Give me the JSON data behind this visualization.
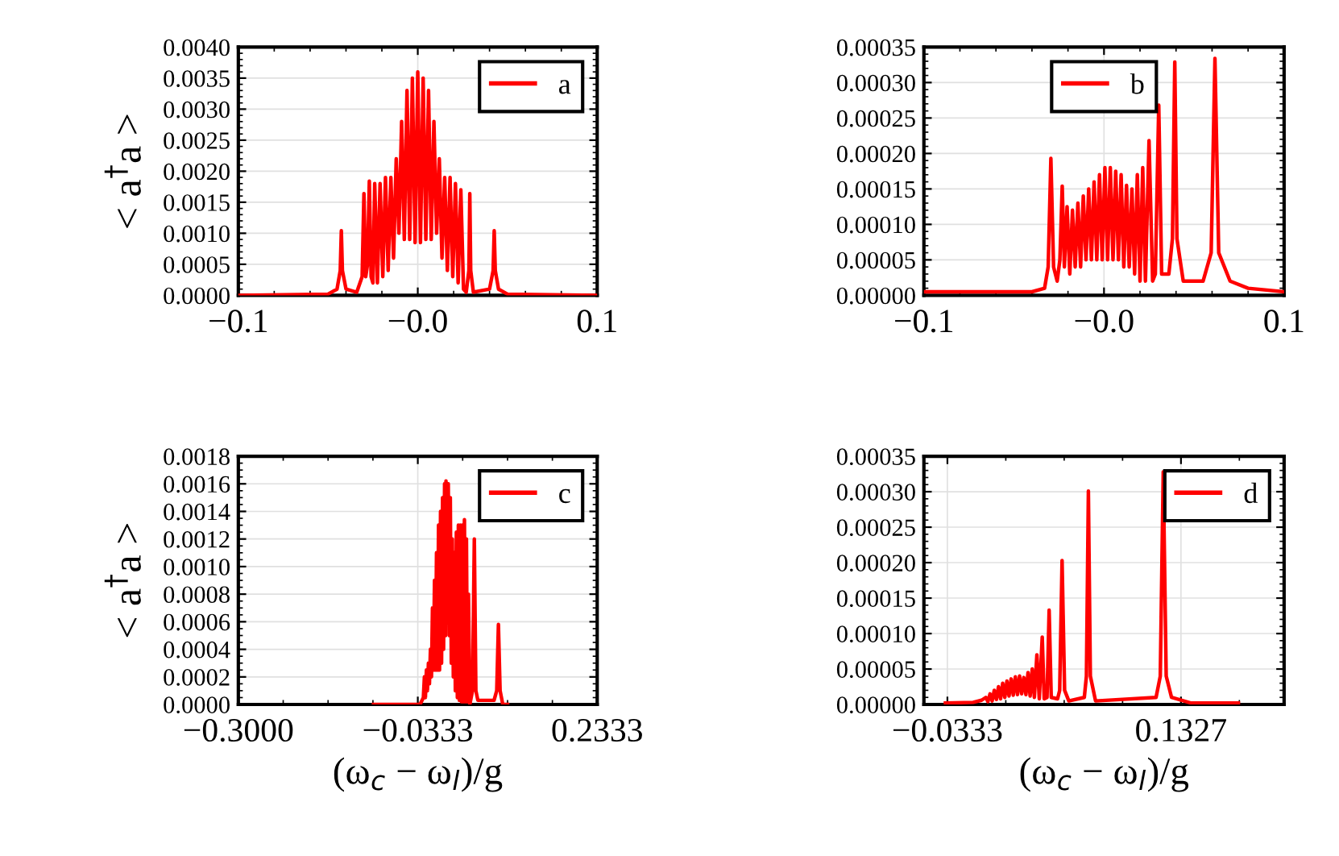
{
  "chart_data": [
    {
      "type": "line",
      "ylabel": "< a$^{†}$a >",
      "legend": "top right",
      "grid": true,
      "xlim": [
        -0.1,
        0.1
      ],
      "xticks": [
        {
          "value": -0.1,
          "label": "−0.1"
        },
        {
          "value": 0,
          "label": "−0.0"
        },
        0.1
      ],
      "ylim": [
        0,
        0.004
      ],
      "yticks": [
        {
          "value": 0,
          "label": "0.0000"
        },
        {
          "value": 0.0005,
          "label": "0.0005"
        },
        {
          "value": 0.001,
          "label": "0.0010"
        },
        {
          "value": 0.0015,
          "label": "0.0015"
        },
        {
          "value": 0.002,
          "label": "0.0020"
        },
        {
          "value": 0.0025,
          "label": "0.0025"
        },
        {
          "value": 0.003,
          "label": "0.0030"
        },
        {
          "value": 0.0035,
          "label": "0.0035"
        },
        {
          "value": 0.004,
          "label": "0.0040"
        }
      ],
      "series": [
        {
          "name": "a",
          "color": "#ff0000",
          "x": [
            -0.1,
            -0.05,
            -0.045,
            -0.0432,
            -0.0426,
            -0.042,
            -0.04,
            -0.034,
            -0.031,
            -0.03,
            -0.029,
            -0.028,
            -0.027,
            -0.026,
            -0.025,
            -0.024,
            -0.0225,
            -0.021,
            -0.0195,
            -0.018,
            -0.0165,
            -0.015,
            -0.0135,
            -0.012,
            -0.0105,
            -0.009,
            -0.0075,
            -0.006,
            -0.0045,
            -0.003,
            -0.0015,
            0,
            0.0015,
            0.003,
            0.0045,
            0.006,
            0.0075,
            0.009,
            0.0105,
            0.012,
            0.0135,
            0.015,
            0.0165,
            0.018,
            0.0195,
            0.021,
            0.0225,
            0.024,
            0.0255,
            0.027,
            0.0285,
            0.029,
            0.0295,
            0.031,
            0.04,
            0.042,
            0.0426,
            0.0432,
            0.045,
            0.05,
            0.1
          ],
          "values": [
            0,
            2e-05,
            0.0001,
            0.0004,
            0.00104,
            0.0004,
            0.0001,
            5e-05,
            0.0003,
            0.00164,
            0.0003,
            0.0005,
            0.00184,
            0.0003,
            0.0002,
            0.0018,
            0.0002,
            0.0018,
            0.0003,
            0.0019,
            0.0004,
            0.0019,
            0.0006,
            0.0022,
            0.001,
            0.0028,
            0.0009,
            0.0033,
            0.0009,
            0.0035,
            0.00085,
            0.0036,
            0.00085,
            0.0035,
            0.0009,
            0.0033,
            0.0009,
            0.0028,
            0.001,
            0.0022,
            0.0006,
            0.0019,
            0.0004,
            0.0019,
            0.0003,
            0.0018,
            0.0002,
            0.0017,
            0.0001,
            5e-05,
            0.0004,
            0.00164,
            0.0004,
            5e-05,
            0.0001,
            0.0004,
            0.00104,
            0.0004,
            0.0001,
            2e-05,
            0
          ]
        }
      ]
    },
    {
      "type": "line",
      "legend": "top",
      "grid": true,
      "xlim": [
        -0.1,
        0.1
      ],
      "xticks": [
        {
          "value": -0.1,
          "label": "−0.1"
        },
        {
          "value": 0,
          "label": "−0.0"
        },
        0.1
      ],
      "ylim": [
        0,
        0.00035
      ],
      "yticks": [
        {
          "value": 0,
          "label": "0.00000"
        },
        {
          "value": 5e-05,
          "label": "0.00005"
        },
        {
          "value": 0.0001,
          "label": "0.00010"
        },
        {
          "value": 0.00015,
          "label": "0.00015"
        },
        {
          "value": 0.0002,
          "label": "0.00020"
        },
        {
          "value": 0.00025,
          "label": "0.00025"
        },
        {
          "value": 0.0003,
          "label": "0.00030"
        },
        {
          "value": 0.00035,
          "label": "0.00035"
        }
      ],
      "series": [
        {
          "name": "b",
          "color": "#ff0000",
          "x": [
            -0.1,
            -0.04,
            -0.033,
            -0.031,
            -0.0295,
            -0.028,
            -0.026,
            -0.0245,
            -0.0232,
            -0.022,
            -0.0205,
            -0.019,
            -0.0175,
            -0.016,
            -0.0145,
            -0.013,
            -0.0115,
            -0.01,
            -0.0085,
            -0.007,
            -0.0055,
            -0.004,
            -0.0025,
            -0.001,
            0.0005,
            0.002,
            0.0035,
            0.005,
            0.0065,
            0.008,
            0.0095,
            0.011,
            0.0125,
            0.014,
            0.0155,
            0.017,
            0.0185,
            0.02,
            0.0215,
            0.023,
            0.025,
            0.027,
            0.0285,
            0.0304,
            0.032,
            0.036,
            0.038,
            0.0393,
            0.0405,
            0.044,
            0.055,
            0.0595,
            0.0616,
            0.0637,
            0.07,
            0.08,
            0.1
          ],
          "values": [
            5e-06,
            5e-06,
            1e-05,
            4e-05,
            0.000193,
            4e-05,
            2e-05,
            5e-05,
            0.000154,
            4e-05,
            0.000125,
            3e-05,
            0.00012,
            4e-05,
            0.00013,
            4e-05,
            0.00014,
            5e-05,
            0.00015,
            5e-05,
            0.00016,
            5e-05,
            0.00017,
            5e-05,
            0.00018,
            5e-05,
            0.00018,
            5e-05,
            0.000175,
            5e-05,
            0.00017,
            4e-05,
            0.000155,
            4e-05,
            0.00015,
            3e-05,
            0.00017,
            2e-05,
            0.00018,
            2e-05,
            0.000218,
            2e-05,
            3e-05,
            0.000268,
            3e-05,
            3e-05,
            8e-05,
            0.000329,
            8e-05,
            2e-05,
            2e-05,
            6e-05,
            0.000334,
            6e-05,
            2e-05,
            1e-05,
            5e-06
          ]
        }
      ]
    },
    {
      "type": "line",
      "ylabel": "< a$^{†}$a >",
      "xlabel": "(ω$_{c}$ − ω$_{l}$)/g",
      "legend": "top right",
      "grid": true,
      "xlim": [
        -0.3,
        0.2333
      ],
      "xticks": [
        {
          "value": -0.3,
          "label": "−0.3000"
        },
        {
          "value": -0.0333,
          "label": "−0.0333"
        },
        {
          "value": 0.2333,
          "label": "0.2333"
        }
      ],
      "ylim": [
        0,
        0.0018
      ],
      "yticks": [
        {
          "value": 0,
          "label": "0.0000"
        },
        {
          "value": 0.0002,
          "label": "0.0002"
        },
        {
          "value": 0.0004,
          "label": "0.0004"
        },
        {
          "value": 0.0006,
          "label": "0.0006"
        },
        {
          "value": 0.0008,
          "label": "0.0008"
        },
        {
          "value": 0.001,
          "label": "0.0010"
        },
        {
          "value": 0.0012,
          "label": "0.0012"
        },
        {
          "value": 0.0014,
          "label": "0.0014"
        },
        {
          "value": 0.0016,
          "label": "0.0016"
        },
        {
          "value": 0.0018,
          "label": "0.0018"
        }
      ],
      "series": [
        {
          "name": "c",
          "color": "#ff0000",
          "x": [
            -0.0991,
            -0.03,
            -0.025,
            -0.0235,
            -0.022,
            -0.0205,
            -0.019,
            -0.0175,
            -0.016,
            -0.0145,
            -0.013,
            -0.0115,
            -0.01,
            -0.0085,
            -0.007,
            -0.0055,
            -0.004,
            -0.0025,
            -0.001,
            0.0005,
            0.002,
            0.0035,
            0.005,
            0.0065,
            0.008,
            0.0086,
            0.0105,
            0.012,
            0.0135,
            0.015,
            0.0165,
            0.018,
            0.0195,
            0.021,
            0.0225,
            0.024,
            0.0255,
            0.027,
            0.0285,
            0.03,
            0.0315,
            0.033,
            0.0345,
            0.036,
            0.0375,
            0.039,
            0.0405,
            0.042,
            0.044,
            0.048,
            0.0507,
            0.053,
            0.056,
            0.08,
            0.084,
            0.0865,
            0.089,
            0.093,
            0.1002
          ],
          "values": [
            0,
            0,
            5e-05,
            0.0002,
            5e-05,
            0.00025,
            0.0001,
            0.0003,
            0.00015,
            0.0004,
            0.0002,
            0.0007,
            0.00025,
            0.0009,
            0.00025,
            0.0011,
            0.00025,
            0.0013,
            0.00025,
            0.0014,
            0.0003,
            0.0015,
            0.0004,
            0.0016,
            0.0005,
            0.00162,
            0.0006,
            0.0016,
            0.0005,
            0.0015,
            0.0003,
            0.0012,
            0.0002,
            0.0011,
            0.0001,
            0.00125,
            5e-05,
            0.0013,
            3e-05,
            0.0013,
            2e-05,
            0.0013,
            2e-05,
            0.00134,
            2e-05,
            0.0012,
            2e-05,
            0.0008,
            0,
            0.0001,
            0.0012,
            0.0001,
            3e-05,
            3e-05,
            0.0001,
            0.00058,
            0.0001,
            0,
            0
          ]
        }
      ]
    },
    {
      "type": "line",
      "xlabel": "(ω$_{c}$ − ω$_{l}$)/g",
      "legend": "top right",
      "grid": true,
      "xlim": [
        -0.05,
        0.206
      ],
      "xticks": [
        {
          "value": -0.0333,
          "label": "−0.0333"
        },
        {
          "value": 0.1327,
          "label": "0.1327"
        }
      ],
      "ylim": [
        0,
        0.00035
      ],
      "yticks": [
        {
          "value": 0,
          "label": "0.00000"
        },
        {
          "value": 5e-05,
          "label": "0.00005"
        },
        {
          "value": 0.0001,
          "label": "0.00010"
        },
        {
          "value": 0.00015,
          "label": "0.00015"
        },
        {
          "value": 0.0002,
          "label": "0.00020"
        },
        {
          "value": 0.00025,
          "label": "0.00025"
        },
        {
          "value": 0.0003,
          "label": "0.00030"
        },
        {
          "value": 0.00035,
          "label": "0.00035"
        }
      ],
      "series": [
        {
          "name": "d",
          "color": "#ff0000",
          "x": [
            -0.0347,
            -0.015,
            -0.009,
            -0.006,
            -0.0045,
            -0.003,
            -0.0015,
            0,
            0.0015,
            0.003,
            0.0045,
            0.006,
            0.0075,
            0.009,
            0.0105,
            0.012,
            0.0135,
            0.015,
            0.0165,
            0.018,
            0.0195,
            0.021,
            0.0225,
            0.024,
            0.0255,
            0.027,
            0.0285,
            0.0303,
            0.032,
            0.0341,
            0.0355,
            0.0375,
            0.039,
            0.0405,
            0.045,
            0.0465,
            0.0482,
            0.05,
            0.053,
            0.064,
            0.0655,
            0.0669,
            0.0683,
            0.072,
            0.115,
            0.118,
            0.1201,
            0.1222,
            0.126,
            0.14,
            0.1735
          ],
          "values": [
            2e-06,
            3e-06,
            6e-06,
            1e-05,
            4e-06,
            1.5e-05,
            5e-06,
            2e-05,
            7e-06,
            2.5e-05,
            8e-06,
            3e-05,
            1e-05,
            3.3e-05,
            1.2e-05,
            3.6e-05,
            1.3e-05,
            3.9e-05,
            1.4e-05,
            4e-05,
            1.5e-05,
            3.8e-05,
            1.4e-05,
            4.5e-05,
            1.2e-05,
            5e-05,
            1e-05,
            7e-05,
            8e-06,
            9.5e-05,
            8e-06,
            1e-05,
            0.000133,
            1e-05,
            8e-06,
            2e-05,
            0.000203,
            2e-05,
            5e-06,
            1e-05,
            4e-05,
            0.000301,
            4e-05,
            5e-06,
            1e-05,
            4e-05,
            0.000328,
            4e-05,
            1e-05,
            2e-06,
            2e-06
          ]
        }
      ]
    }
  ]
}
